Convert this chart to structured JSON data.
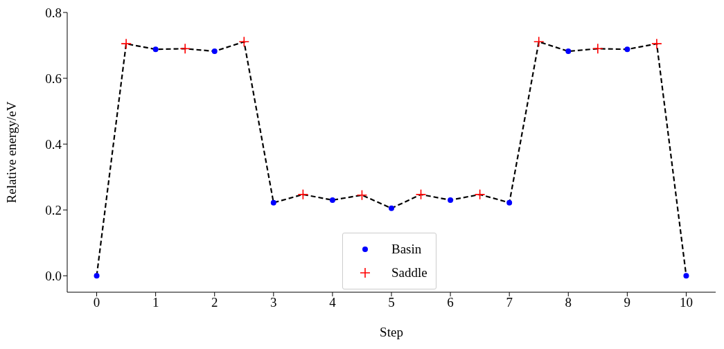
{
  "chart_data": {
    "type": "line",
    "xlabel": "Step",
    "ylabel": "Relative energy/eV",
    "xlim": [
      -0.5,
      10.5
    ],
    "xticks": [
      0,
      1,
      2,
      3,
      4,
      5,
      6,
      7,
      8,
      9,
      10
    ],
    "ylim": [
      -0.05,
      0.8
    ],
    "yticks": [
      {
        "value": 0,
        "label": "0.0"
      },
      {
        "value": 0.2,
        "label": "0.2"
      },
      {
        "value": 0.4,
        "label": "0.4"
      },
      {
        "value": 0.6,
        "label": "0.6"
      },
      {
        "value": 0.8,
        "label": "0.8"
      }
    ],
    "grid": false,
    "legend": "bottom",
    "series": [
      {
        "type": "line",
        "color": "#000000",
        "line_style": "dashed",
        "marker": "none",
        "x": [
          0,
          0.5,
          1,
          1.5,
          2,
          2.5,
          3,
          3.5,
          4,
          4.5,
          5,
          5.5,
          6,
          6.5,
          7,
          7.5,
          8,
          8.5,
          9,
          9.5,
          10
        ],
        "values": [
          0,
          0.705,
          0.688,
          0.69,
          0.682,
          0.711,
          0.222,
          0.247,
          0.23,
          0.245,
          0.205,
          0.247,
          0.23,
          0.247,
          0.222,
          0.711,
          0.682,
          0.69,
          0.688,
          0.705,
          0
        ]
      },
      {
        "type": "scatter",
        "name": "Basin",
        "color": "#0000ff",
        "marker": "circle",
        "x": [
          0,
          1,
          2,
          3,
          4,
          5,
          6,
          7,
          8,
          9,
          10
        ],
        "values": [
          0,
          0.688,
          0.682,
          0.222,
          0.23,
          0.205,
          0.23,
          0.222,
          0.682,
          0.688,
          0
        ]
      },
      {
        "type": "scatter",
        "name": "Saddle",
        "color": "#ff0000",
        "marker": "cross",
        "x": [
          0.5,
          1.5,
          2.5,
          3.5,
          4.5,
          5.5,
          6.5,
          7.5,
          8.5,
          9.5
        ],
        "values": [
          0.705,
          0.69,
          0.711,
          0.247,
          0.245,
          0.247,
          0.247,
          0.711,
          0.69,
          0.705
        ]
      }
    ]
  }
}
